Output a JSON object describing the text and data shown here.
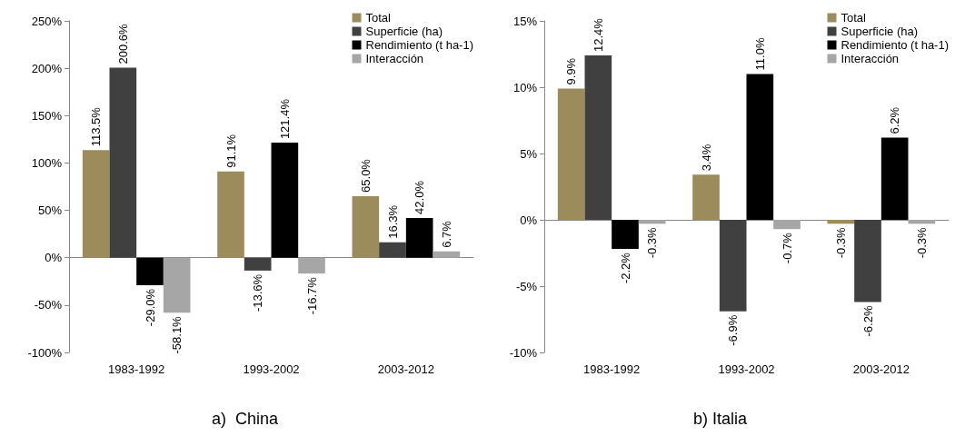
{
  "chart_data": [
    {
      "type": "bar",
      "title": "a)  China",
      "categories": [
        "1983-1992",
        "1993-2002",
        "2003-2012"
      ],
      "legend": "top right",
      "ylim": [
        -100,
        250
      ],
      "yticks": [
        {
          "value": -100,
          "label": "-100%"
        },
        {
          "value": -50,
          "label": "-50%"
        },
        {
          "value": 0,
          "label": "0%"
        },
        {
          "value": 50,
          "label": "50%"
        },
        {
          "value": 100,
          "label": "100%"
        },
        {
          "value": 150,
          "label": "150%"
        },
        {
          "value": 200,
          "label": "200%"
        },
        {
          "value": 250,
          "label": "250%"
        }
      ],
      "series": [
        {
          "name": "Total",
          "color": "#9c8c5c",
          "values": [
            113.5,
            91.1,
            65.0
          ],
          "value_labels": [
            "113.5%",
            "91.1%",
            "65.0%"
          ]
        },
        {
          "name": "Superficie (ha)",
          "color": "#404040",
          "values": [
            200.6,
            -13.6,
            16.3
          ],
          "value_labels": [
            "200.6%",
            "-13.6%",
            "16.3%"
          ]
        },
        {
          "name": "Rendimiento (t ha-1)",
          "color": "#000000",
          "values": [
            -29.0,
            121.4,
            42.0
          ],
          "value_labels": [
            "-29.0%",
            "121.4%",
            "42.0%"
          ]
        },
        {
          "name": "Interacción",
          "color": "#a6a6a6",
          "values": [
            -58.1,
            -16.7,
            6.7
          ],
          "value_labels": [
            "-58.1%",
            "-16.7%",
            "6.7%"
          ]
        }
      ]
    },
    {
      "type": "bar",
      "title": "b) Italia",
      "categories": [
        "1983-1992",
        "1993-2002",
        "2003-2012"
      ],
      "legend": "top right",
      "ylim": [
        -10,
        15
      ],
      "yticks": [
        {
          "value": -10,
          "label": "-10%"
        },
        {
          "value": -5,
          "label": "-5%"
        },
        {
          "value": 0,
          "label": "0%"
        },
        {
          "value": 5,
          "label": "5%"
        },
        {
          "value": 10,
          "label": "10%"
        },
        {
          "value": 15,
          "label": "15%"
        }
      ],
      "series": [
        {
          "name": "Total",
          "color": "#9c8c5c",
          "values": [
            9.9,
            3.4,
            -0.3
          ],
          "value_labels": [
            "9.9%",
            "3.4%",
            "-0.3%"
          ]
        },
        {
          "name": "Superficie (ha)",
          "color": "#404040",
          "values": [
            12.4,
            -6.9,
            -6.2
          ],
          "value_labels": [
            "12.4%",
            "-6.9%",
            "-6.2%"
          ]
        },
        {
          "name": "Rendimiento (t ha-1)",
          "color": "#000000",
          "values": [
            -2.2,
            11.0,
            6.2
          ],
          "value_labels": [
            "-2.2%",
            "11.0%",
            "6.2%"
          ]
        },
        {
          "name": "Interacción",
          "color": "#a6a6a6",
          "values": [
            -0.3,
            -0.7,
            -0.3
          ],
          "value_labels": [
            "-0.3%",
            "-0.7%",
            "-0.3%"
          ]
        }
      ]
    }
  ]
}
